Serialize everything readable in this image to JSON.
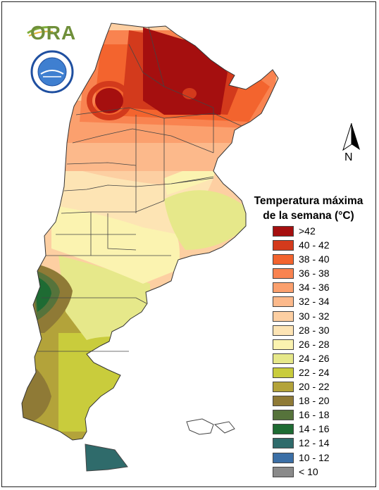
{
  "logos": {
    "ora_text": "ORA",
    "smn_seal": "SERVICIO METEOROLÓGICO NACIONAL · ARGENTINA"
  },
  "north_arrow": {
    "label": "N"
  },
  "legend": {
    "title_line1": "Temperatura máxima",
    "title_line2": "de la semana (°C)",
    "classes": [
      {
        "label": ">42",
        "color": "#a50f0f"
      },
      {
        "label": "40 - 42",
        "color": "#d33a1c"
      },
      {
        "label": "38 - 40",
        "color": "#f3642e"
      },
      {
        "label": "36 - 38",
        "color": "#f98350"
      },
      {
        "label": "34 - 36",
        "color": "#fba06e"
      },
      {
        "label": "32 - 34",
        "color": "#fcb98b"
      },
      {
        "label": "30 - 32",
        "color": "#fdcfa2"
      },
      {
        "label": "28 - 30",
        "color": "#fde4b4"
      },
      {
        "label": "26 - 28",
        "color": "#fbf3b0"
      },
      {
        "label": "24 - 26",
        "color": "#e6e88a"
      },
      {
        "label": "22 - 24",
        "color": "#c9cc3c"
      },
      {
        "label": "20 - 22",
        "color": "#b3a33a"
      },
      {
        "label": "18 - 20",
        "color": "#8f7a36"
      },
      {
        "label": "16 - 18",
        "color": "#56733b"
      },
      {
        "label": "14 - 16",
        "color": "#1e6b33"
      },
      {
        "label": "12 - 14",
        "color": "#2f6b6b"
      },
      {
        "label": "10 - 12",
        "color": "#3b6fa6"
      },
      {
        "label": "< 10",
        "color": "#8a8a8a"
      }
    ]
  }
}
